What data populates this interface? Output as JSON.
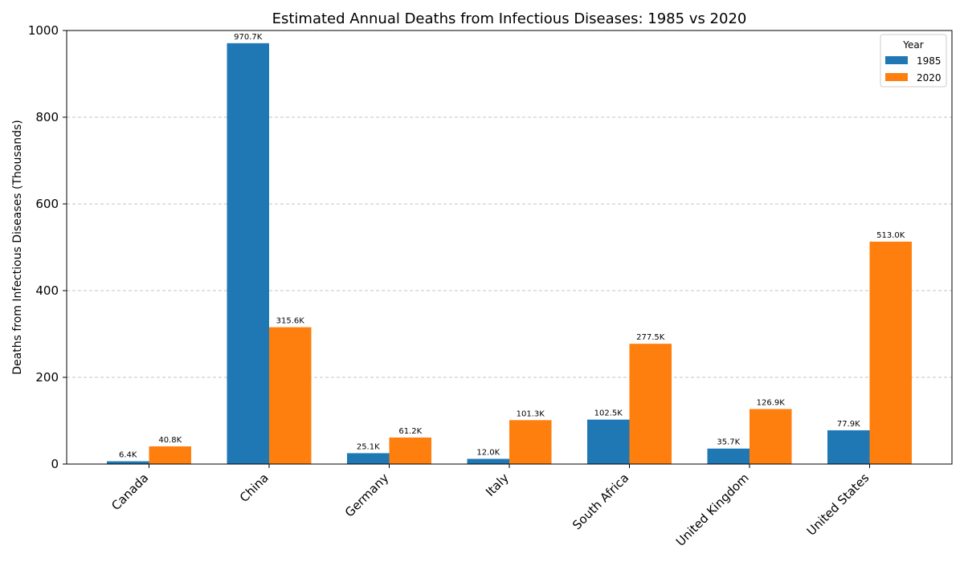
{
  "chart_data": {
    "type": "bar",
    "title": "Estimated Annual Deaths from Infectious Diseases: 1985 vs 2020",
    "xlabel": "",
    "ylabel": "Deaths from Infectious Diseases (Thousands)",
    "ylim": [
      0,
      1000
    ],
    "yticks": [
      "0",
      "200",
      "400",
      "600",
      "800",
      "1000"
    ],
    "grid": "y-dashed",
    "categories": [
      "Canada",
      "China",
      "Germany",
      "Italy",
      "South Africa",
      "United Kingdom",
      "United States"
    ],
    "legend": {
      "title": "Year",
      "placement": "top-right"
    },
    "series": [
      {
        "name": "1985",
        "color": "#1f77b4",
        "values": [
          6.4,
          970.7,
          25.1,
          12.0,
          102.5,
          35.7,
          77.9
        ],
        "labels": [
          "6.4K",
          "970.7K",
          "25.1K",
          "12.0K",
          "102.5K",
          "35.7K",
          "77.9K"
        ]
      },
      {
        "name": "2020",
        "color": "#ff7f0e",
        "values": [
          40.8,
          315.6,
          61.2,
          101.3,
          277.5,
          126.9,
          513.0
        ],
        "labels": [
          "40.8K",
          "315.6K",
          "61.2K",
          "101.3K",
          "277.5K",
          "126.9K",
          "513.0K"
        ]
      }
    ]
  }
}
